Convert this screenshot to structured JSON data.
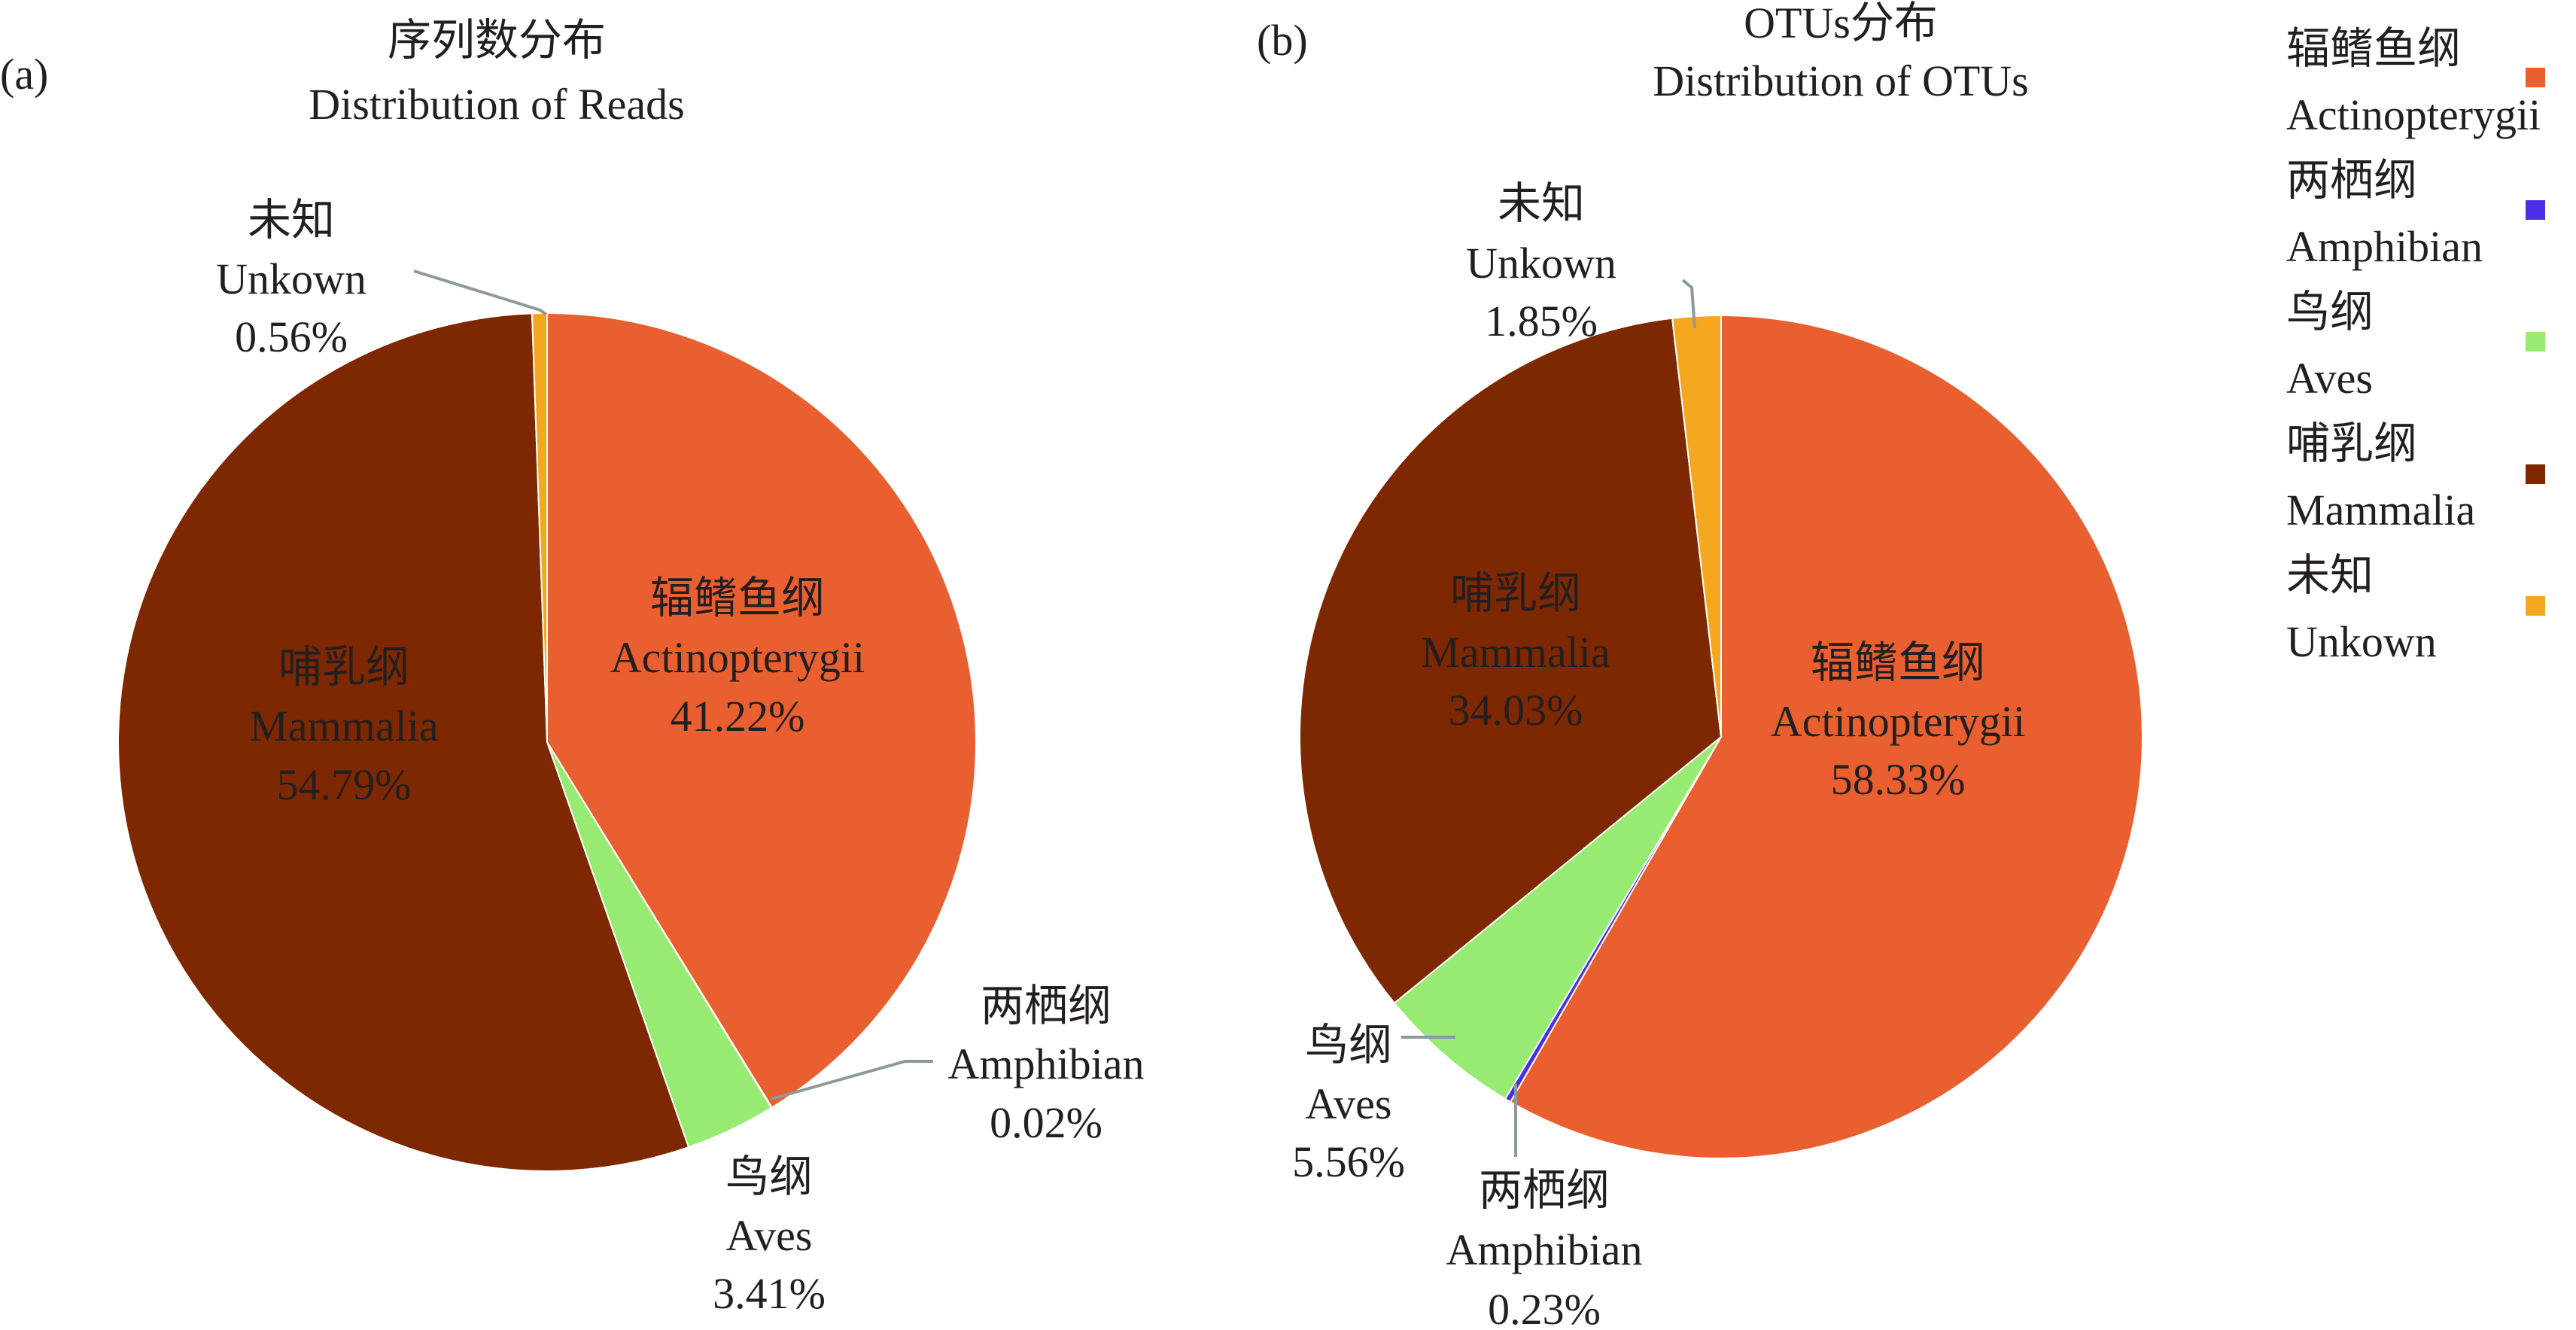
{
  "chart_data": [
    {
      "type": "pie",
      "panel": "(a)",
      "title": "序列数分布",
      "subtitle": "Distribution of Reads",
      "slices": [
        {
          "key": "act",
          "label_cn": "辐鳍鱼纲",
          "label_en": "Actinopterygii",
          "percent": "41.22%",
          "value": 41.22
        },
        {
          "key": "amp",
          "label_cn": "两栖纲",
          "label_en": "Amphibian",
          "percent": "0.02%",
          "value": 0.02
        },
        {
          "key": "ave",
          "label_cn": "鸟纲",
          "label_en": "Aves",
          "percent": "3.41%",
          "value": 3.41
        },
        {
          "key": "mam",
          "label_cn": "哺乳纲",
          "label_en": "Mammalia",
          "percent": "54.79%",
          "value": 54.79
        },
        {
          "key": "unk",
          "label_cn": "未知",
          "label_en": "Unkown",
          "percent": "0.56%",
          "value": 0.56
        }
      ]
    },
    {
      "type": "pie",
      "panel": "(b)",
      "title": "OTUs分布",
      "subtitle": "Distribution of OTUs",
      "slices": [
        {
          "key": "act",
          "label_cn": "辐鳍鱼纲",
          "label_en": "Actinopterygii",
          "percent": "58.33%",
          "value": 58.33
        },
        {
          "key": "amp",
          "label_cn": "两栖纲",
          "label_en": "Amphibian",
          "percent": "0.23%",
          "value": 0.23
        },
        {
          "key": "ave",
          "label_cn": "鸟纲",
          "label_en": "Aves",
          "percent": "5.56%",
          "value": 5.56
        },
        {
          "key": "mam",
          "label_cn": "哺乳纲",
          "label_en": "Mammalia",
          "percent": "34.03%",
          "value": 34.03
        },
        {
          "key": "unk",
          "label_cn": "未知",
          "label_en": "Unkown",
          "percent": "1.85%",
          "value": 1.85
        }
      ]
    }
  ],
  "legend": {
    "placement": "right",
    "items": [
      {
        "key": "act",
        "label_cn": "辐鳍鱼纲",
        "label_en": "Actinopterygii",
        "color": "#e95f2f"
      },
      {
        "key": "amp",
        "label_cn": "两栖纲",
        "label_en": "Amphibian",
        "color": "#4a2fe6"
      },
      {
        "key": "ave",
        "label_cn": "鸟纲",
        "label_en": "Aves",
        "color": "#97ea72"
      },
      {
        "key": "mam",
        "label_cn": "哺乳纲",
        "label_en": "Mammalia",
        "color": "#7d2800"
      },
      {
        "key": "unk",
        "label_cn": "未知",
        "label_en": "Unkown",
        "color": "#f5a81f"
      }
    ]
  },
  "colors": {
    "act": "#e95f2f",
    "amp": "#4a2fe6",
    "ave": "#97ea72",
    "mam": "#7d2800",
    "unk": "#f5a81f",
    "leader": "#8c9a9a",
    "text": "#231f20"
  }
}
